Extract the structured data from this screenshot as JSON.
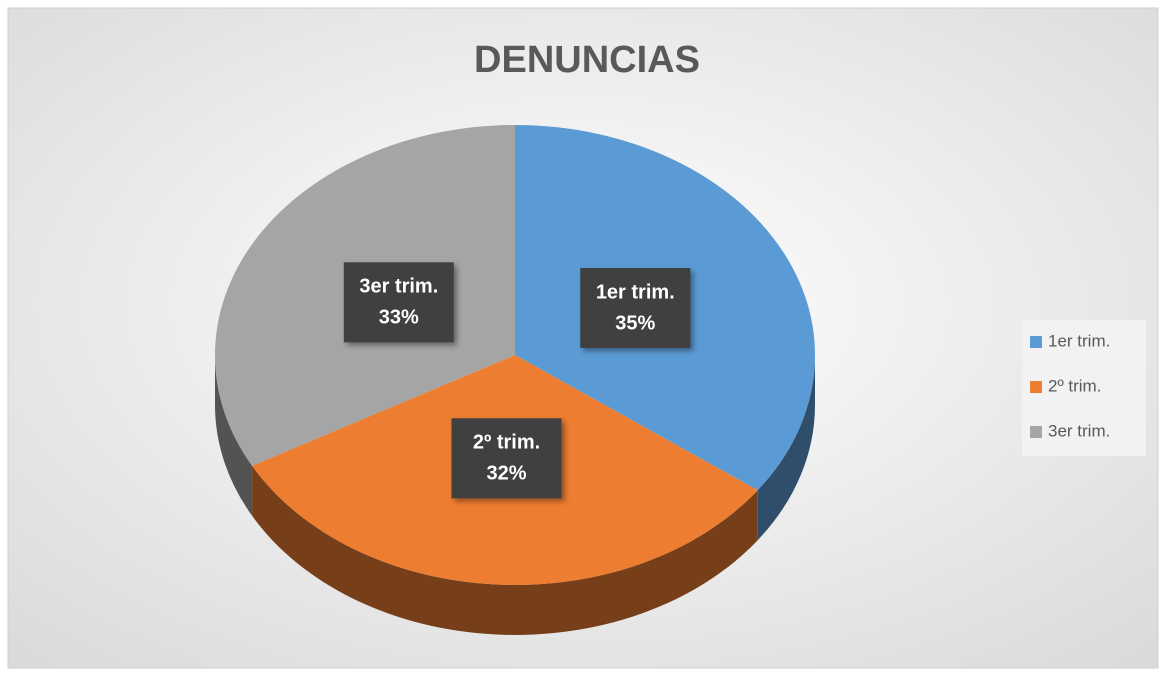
{
  "chart_data": {
    "type": "pie",
    "title": "DENUNCIAS",
    "categories": [
      "1er trim.",
      "2º trim.",
      "3er trim."
    ],
    "values": [
      35,
      32,
      33
    ],
    "value_labels": [
      "35%",
      "32%",
      "33%"
    ],
    "colors": [
      "#5b9bd5",
      "#ed7d31",
      "#a5a5a5"
    ],
    "legend": "right"
  }
}
